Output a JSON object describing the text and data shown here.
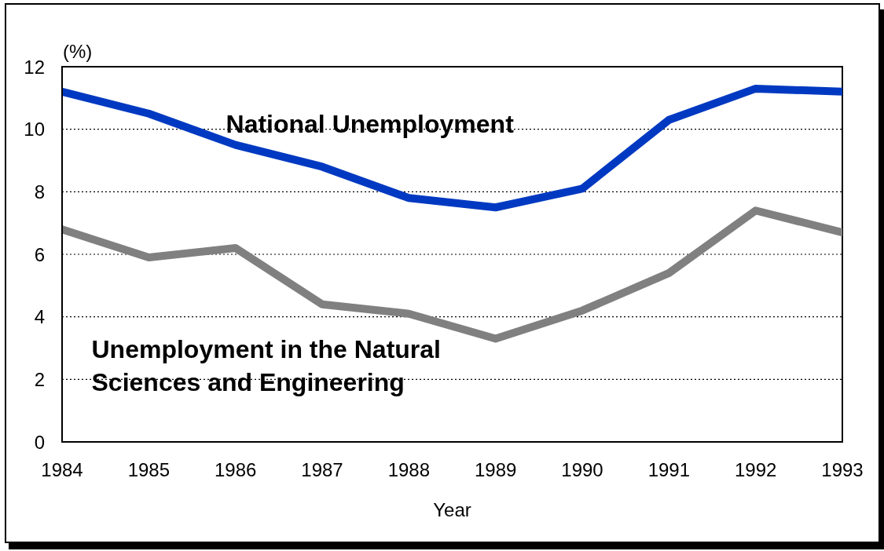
{
  "chart_data": {
    "type": "line",
    "xlabel": "Year",
    "ylabel": "(%)",
    "x": [
      1984,
      1985,
      1986,
      1987,
      1988,
      1989,
      1990,
      1991,
      1992,
      1993
    ],
    "xlim": [
      1984,
      1993
    ],
    "xticks": [
      1984,
      1985,
      1986,
      1987,
      1988,
      1989,
      1990,
      1991,
      1992,
      1993
    ],
    "ylim": [
      0,
      12
    ],
    "yticks": [
      0,
      2,
      4,
      6,
      8,
      10,
      12
    ],
    "grid": "y",
    "marker": "none",
    "line_style": "solid",
    "series": [
      {
        "name": "National Unemployment",
        "color": "#0039c1",
        "values": [
          11.2,
          10.5,
          9.5,
          8.8,
          7.8,
          7.5,
          8.1,
          10.3,
          11.3,
          11.2
        ]
      },
      {
        "name": "Unemployment in the Natural Sciences and Engineering",
        "color": "#808080",
        "values": [
          6.8,
          5.9,
          6.2,
          4.4,
          4.1,
          3.3,
          4.2,
          5.4,
          7.4,
          6.7
        ]
      }
    ]
  }
}
